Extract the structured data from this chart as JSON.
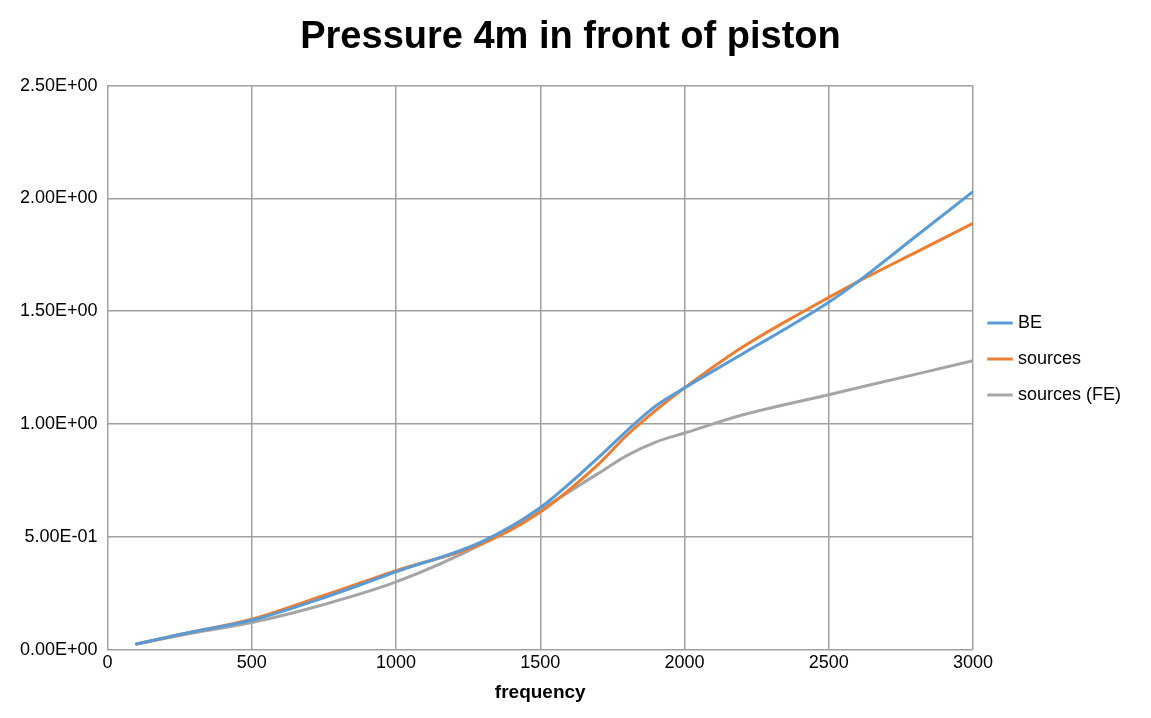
{
  "chart_data": {
    "type": "line",
    "title": "Pressure 4m in front of piston",
    "xlabel": "frequency",
    "xlim": [
      0,
      3000
    ],
    "xticks": [
      0,
      500,
      1000,
      1500,
      2000,
      2500,
      3000
    ],
    "ylim": [
      0,
      2.5
    ],
    "yticks": [
      {
        "value": 0,
        "label": "0.00E+00"
      },
      {
        "value": 0.5,
        "label": "5.00E-01"
      },
      {
        "value": 1,
        "label": "1.00E+00"
      },
      {
        "value": 1.5,
        "label": "1.50E+00"
      },
      {
        "value": 2,
        "label": "2.00E+00"
      },
      {
        "value": 2.5,
        "label": "2.50E+00"
      }
    ],
    "grid": true,
    "legend": "right",
    "marker": "none",
    "line_style": "solid",
    "series": [
      {
        "name": "BE",
        "color": "#5b9bd5",
        "x": [
          100,
          300,
          500,
          750,
          1000,
          1300,
          1500,
          1700,
          1800,
          1900,
          2000,
          2200,
          2500,
          2600,
          2800,
          3000
        ],
        "values": [
          0.025,
          0.08,
          0.13,
          0.23,
          0.345,
          0.48,
          0.63,
          0.85,
          0.97,
          1.08,
          1.16,
          1.31,
          1.54,
          1.63,
          1.83,
          2.03
        ]
      },
      {
        "name": "sources",
        "color": "#ed7d31",
        "x": [
          100,
          300,
          500,
          750,
          1000,
          1300,
          1500,
          1700,
          1800,
          1900,
          2000,
          2200,
          2400,
          2600,
          2800,
          3000
        ],
        "values": [
          0.025,
          0.08,
          0.135,
          0.24,
          0.35,
          0.47,
          0.61,
          0.82,
          0.95,
          1.06,
          1.16,
          1.34,
          1.49,
          1.63,
          1.76,
          1.89
        ]
      },
      {
        "name": "sources (FE)",
        "color": "#a5a5a5",
        "x": [
          100,
          300,
          500,
          750,
          1000,
          1300,
          1500,
          1700,
          1800,
          1900,
          2000,
          2200,
          2500,
          2800,
          3000
        ],
        "values": [
          0.025,
          0.075,
          0.12,
          0.2,
          0.3,
          0.47,
          0.62,
          0.78,
          0.86,
          0.92,
          0.96,
          1.04,
          1.13,
          1.22,
          1.28
        ]
      }
    ]
  }
}
